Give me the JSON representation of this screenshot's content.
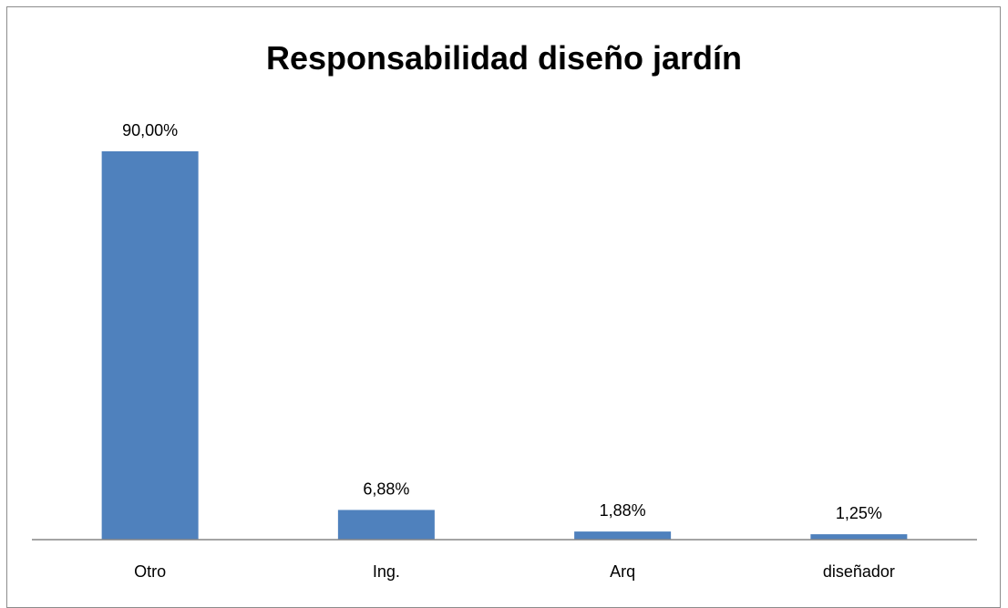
{
  "chart_data": {
    "type": "bar",
    "title": "Responsabilidad diseño jardín",
    "categories": [
      "Otro",
      "Ing.",
      "Arq",
      "diseñador"
    ],
    "values": [
      90.0,
      6.88,
      1.88,
      1.25
    ],
    "data_labels": [
      "90,00%",
      "6,88%",
      "1,88%",
      "1,25%"
    ],
    "unit": "%",
    "xlabel": "",
    "ylabel": "",
    "ylim": [
      0,
      100
    ],
    "grid": false,
    "legend": "none",
    "bar_color": "#4f81bd"
  }
}
